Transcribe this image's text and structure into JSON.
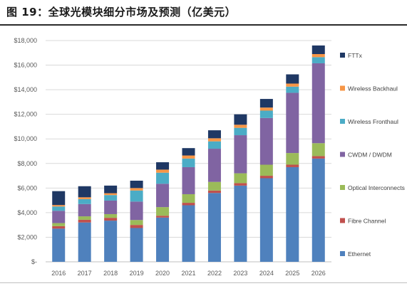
{
  "figure": {
    "title": "图 19：全球光模块细分市场及预测（亿美元）"
  },
  "chart_data": {
    "type": "bar",
    "stacked": true,
    "categories": [
      "2016",
      "2017",
      "2018",
      "2019",
      "2020",
      "2021",
      "2022",
      "2023",
      "2024",
      "2025",
      "2026"
    ],
    "ylim": [
      0,
      18000
    ],
    "yticks": [
      "$-",
      "$2,000",
      "$4,000",
      "$6,000",
      "$8,000",
      "$10,000",
      "$12,000",
      "$14,000",
      "$16,000",
      "$18,000"
    ],
    "grid": true,
    "legend_position": "right",
    "series": [
      {
        "name": "Ethernet",
        "color": "#4f81bd",
        "values": [
          2700,
          3200,
          3350,
          2750,
          3600,
          4600,
          5600,
          6200,
          6800,
          7700,
          8400
        ]
      },
      {
        "name": "Fibre Channel",
        "color": "#c0504d",
        "values": [
          200,
          220,
          230,
          250,
          150,
          200,
          200,
          200,
          200,
          200,
          200
        ]
      },
      {
        "name": "Optical Interconnects",
        "color": "#9bbb59",
        "values": [
          250,
          280,
          300,
          400,
          700,
          700,
          700,
          800,
          900,
          950,
          1050
        ]
      },
      {
        "name": "CWDM / DWDM",
        "color": "#8064a2",
        "values": [
          1000,
          1000,
          1100,
          1500,
          1900,
          2200,
          2700,
          3100,
          3800,
          4900,
          6500
        ]
      },
      {
        "name": "Wireless Fronthaul",
        "color": "#4bacc6",
        "values": [
          350,
          400,
          450,
          900,
          900,
          700,
          600,
          600,
          600,
          500,
          500
        ]
      },
      {
        "name": "Wireless Backhaul",
        "color": "#f79646",
        "values": [
          120,
          150,
          150,
          200,
          250,
          250,
          250,
          250,
          250,
          250,
          250
        ]
      },
      {
        "name": "FTTx",
        "color": "#1f3864",
        "values": [
          1130,
          900,
          620,
          600,
          600,
          600,
          650,
          850,
          700,
          750,
          700
        ]
      }
    ]
  }
}
